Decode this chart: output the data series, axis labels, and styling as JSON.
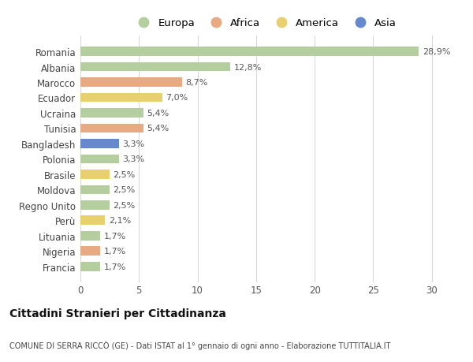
{
  "countries": [
    "Romania",
    "Albania",
    "Marocco",
    "Ecuador",
    "Ucraina",
    "Tunisia",
    "Bangladesh",
    "Polonia",
    "Brasile",
    "Moldova",
    "Regno Unito",
    "Perù",
    "Lituania",
    "Nigeria",
    "Francia"
  ],
  "values": [
    28.9,
    12.8,
    8.7,
    7.0,
    5.4,
    5.4,
    3.3,
    3.3,
    2.5,
    2.5,
    2.5,
    2.1,
    1.7,
    1.7,
    1.7
  ],
  "labels": [
    "28,9%",
    "12,8%",
    "8,7%",
    "7,0%",
    "5,4%",
    "5,4%",
    "3,3%",
    "3,3%",
    "2,5%",
    "2,5%",
    "2,5%",
    "2,1%",
    "1,7%",
    "1,7%",
    "1,7%"
  ],
  "continents": [
    "Europa",
    "Europa",
    "Africa",
    "America",
    "Europa",
    "Africa",
    "Asia",
    "Europa",
    "America",
    "Europa",
    "Europa",
    "America",
    "Europa",
    "Africa",
    "Europa"
  ],
  "colors": {
    "Europa": "#b5ceA0",
    "Africa": "#e8aa82",
    "America": "#e8d070",
    "Asia": "#6688cc"
  },
  "xlim": [
    0,
    31.5
  ],
  "xticks": [
    0,
    5,
    10,
    15,
    20,
    25,
    30
  ],
  "title": "Cittadini Stranieri per Cittadinanza",
  "subtitle": "COMUNE DI SERRA RICCÒ (GE) - Dati ISTAT al 1° gennaio di ogni anno - Elaborazione TUTTITALIA.IT",
  "bg_color": "#ffffff",
  "grid_color": "#d8d8d8",
  "legend_order": [
    "Europa",
    "Africa",
    "America",
    "Asia"
  ]
}
